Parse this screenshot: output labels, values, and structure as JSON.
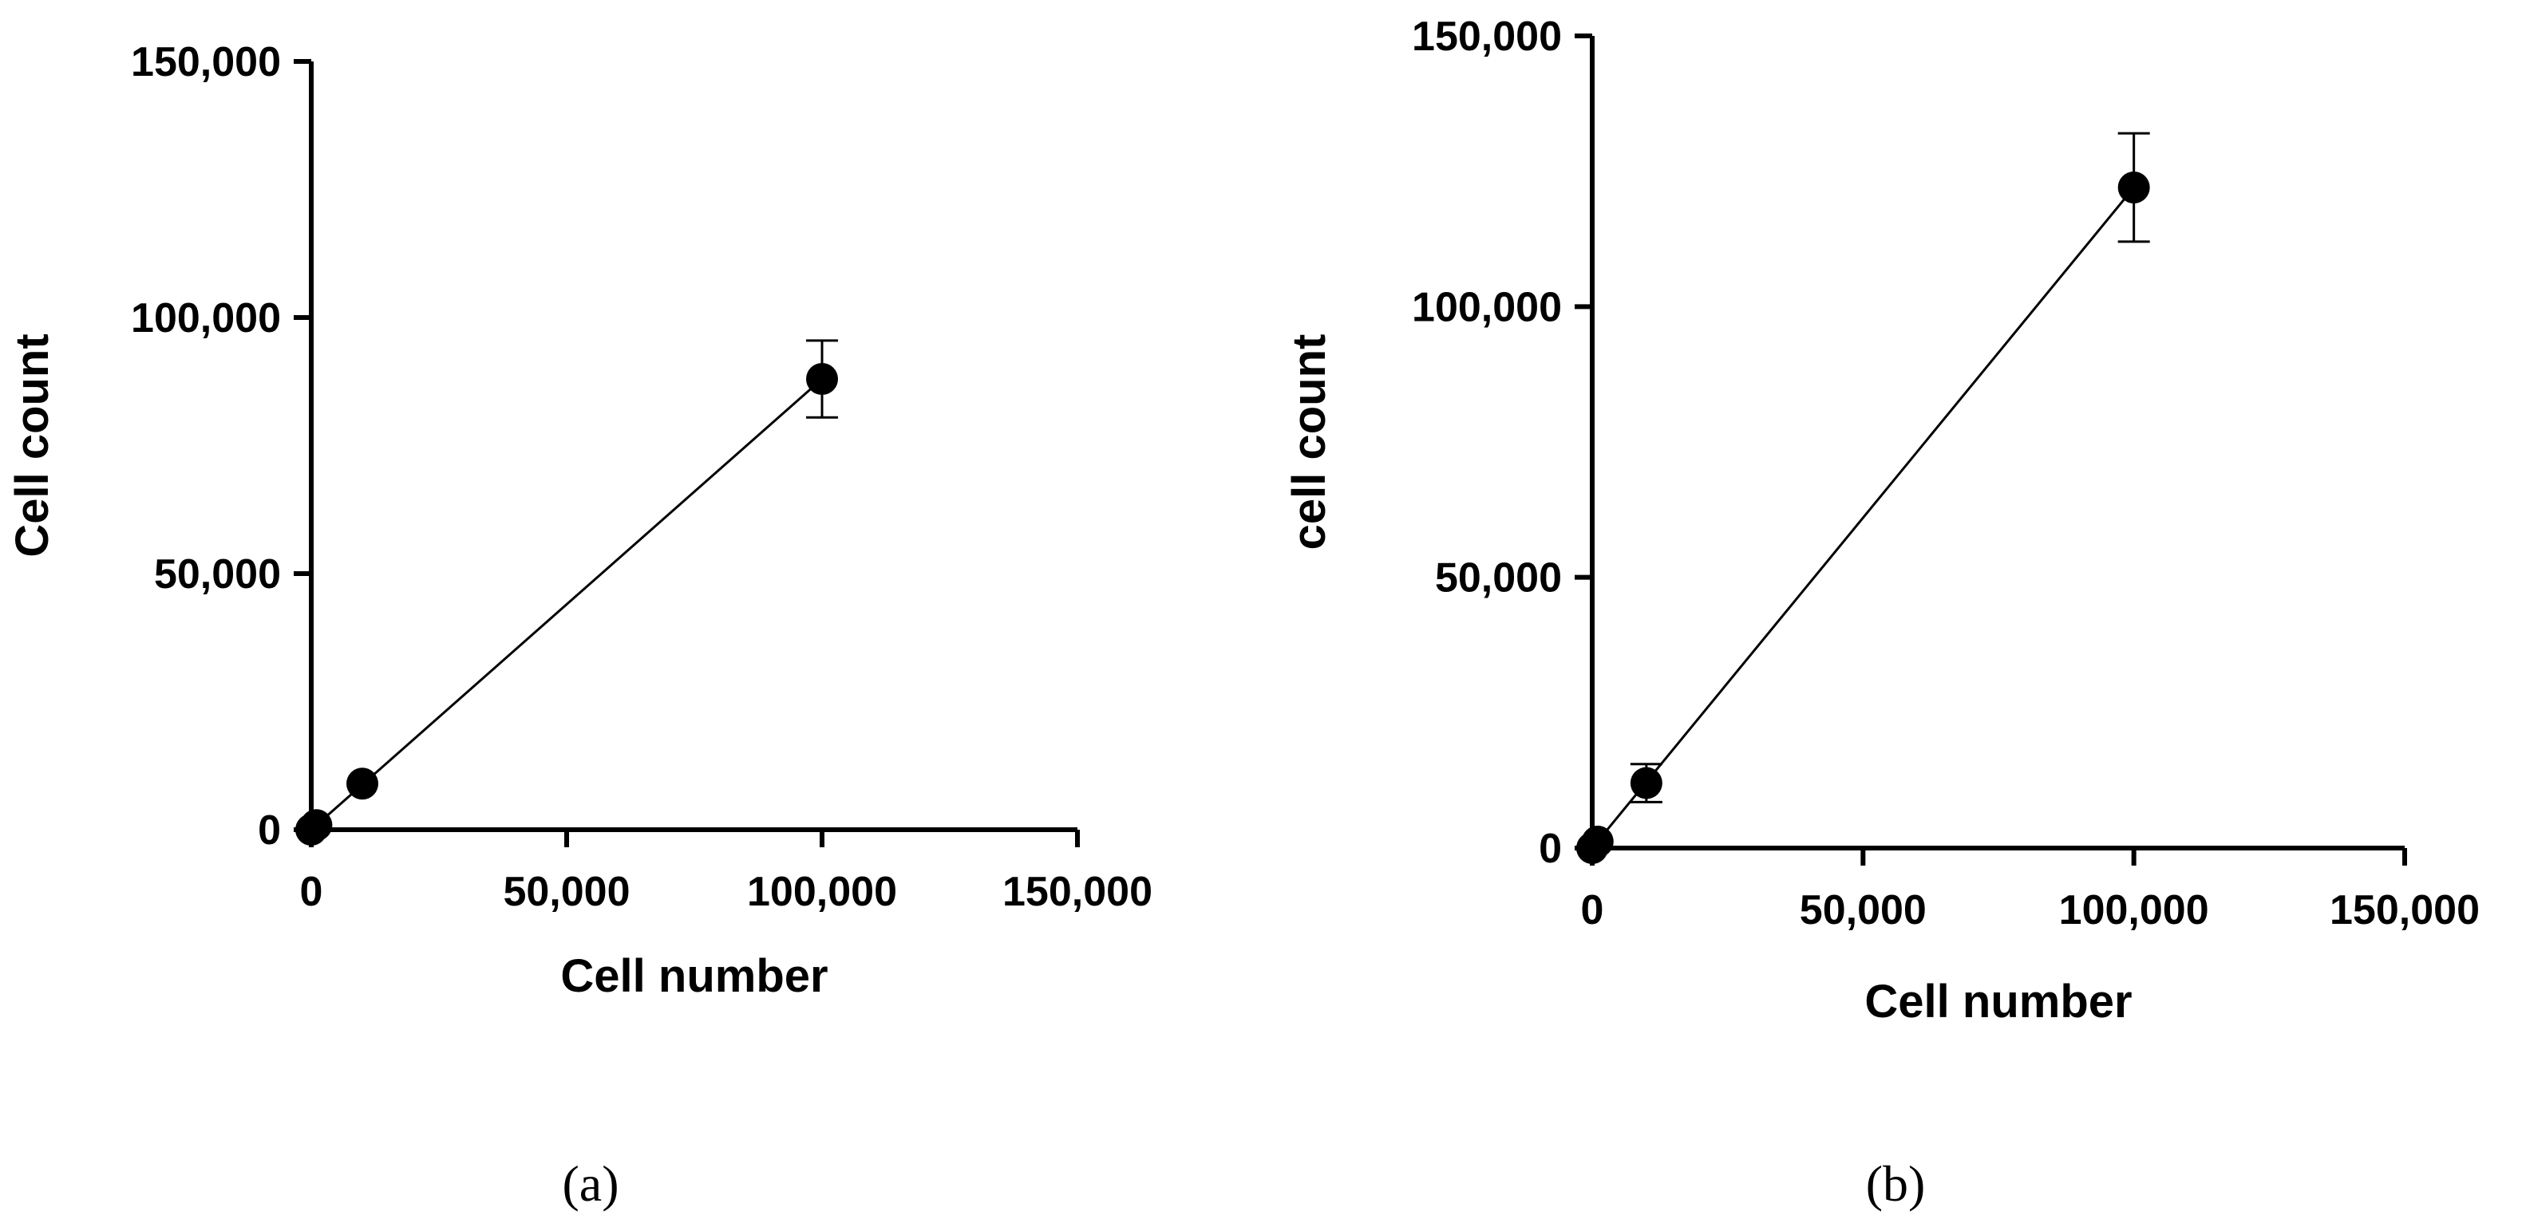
{
  "colors": {
    "ink": "#000000",
    "background": "#ffffff"
  },
  "chart_data": [
    {
      "type": "scatter",
      "panel_label": "(a)",
      "panel_letter": "a",
      "xlabel": "Cell number",
      "ylabel": "Cell count",
      "xlim": [
        0,
        150000
      ],
      "ylim": [
        0,
        150000
      ],
      "x_ticks": [
        0,
        50000,
        100000,
        150000
      ],
      "y_ticks": [
        0,
        50000,
        100000,
        150000
      ],
      "x_tick_labels": [
        "0",
        "50,000",
        "100,000",
        "150,000"
      ],
      "y_tick_labels": [
        "0",
        "50,000",
        "100,000",
        "150,000"
      ],
      "grid": false,
      "legend": "none",
      "fit_line": {
        "x": [
          0,
          100000
        ],
        "y": [
          0,
          88000
        ]
      },
      "series": [
        {
          "x": [
            0,
            1000,
            10000,
            100000
          ],
          "y": [
            0,
            900,
            9000,
            88000
          ],
          "error": [
            0,
            0,
            0,
            7500
          ]
        }
      ]
    },
    {
      "type": "scatter",
      "panel_label": "(b)",
      "panel_letter": "b",
      "xlabel": "Cell number",
      "ylabel": "cell count",
      "xlim": [
        0,
        150000
      ],
      "ylim": [
        0,
        150000
      ],
      "x_ticks": [
        0,
        50000,
        100000,
        150000
      ],
      "y_ticks": [
        0,
        50000,
        100000,
        150000
      ],
      "x_tick_labels": [
        "0",
        "50,000",
        "100,000",
        "150,000"
      ],
      "y_tick_labels": [
        "0",
        "50,000",
        "100,000",
        "150,000"
      ],
      "grid": false,
      "legend": "none",
      "fit_line": {
        "x": [
          0,
          100000
        ],
        "y": [
          0,
          122000
        ]
      },
      "series": [
        {
          "x": [
            0,
            1000,
            10000,
            100000
          ],
          "y": [
            0,
            1200,
            12000,
            122000
          ],
          "error": [
            0,
            0,
            3500,
            10000
          ]
        }
      ]
    }
  ]
}
